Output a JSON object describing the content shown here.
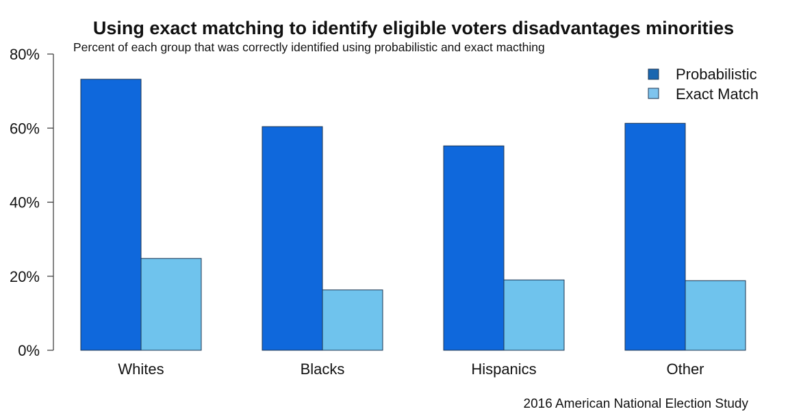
{
  "chart_data": {
    "type": "bar",
    "title": "Using exact matching to identify eligible voters disadvantages minorities",
    "subtitle": "Percent of each group that was correctly identified using probabilistic and exact macthing",
    "xlabel": "",
    "ylabel": "",
    "ylim": [
      0,
      80
    ],
    "yticks": [
      0,
      20,
      40,
      60,
      80
    ],
    "ytick_labels": [
      "0%",
      "20%",
      "40%",
      "60%",
      "80%"
    ],
    "grid": false,
    "categories": [
      "Whites",
      "Blacks",
      "Hispanics",
      "Other"
    ],
    "series": [
      {
        "name": "Probabilistic",
        "color": "#0f68dc",
        "legend_color": "#1a66b0",
        "values": [
          73.2,
          60.4,
          55.2,
          61.3
        ]
      },
      {
        "name": "Exact Match",
        "color": "#6fc3ed",
        "legend_color": "#7ec4ee",
        "values": [
          24.8,
          16.3,
          19.0,
          18.8
        ]
      }
    ],
    "legend": {
      "position": "top-right"
    },
    "source": "2016 American National Election Study"
  }
}
